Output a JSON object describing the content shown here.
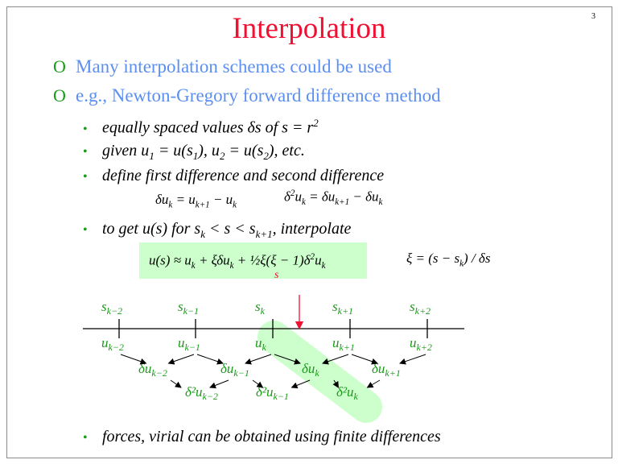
{
  "title": "Interpolation",
  "page_number": "3",
  "bullets": [
    {
      "icon": "hollow-o-bullet",
      "marker": "O",
      "text": "Many interpolation schemes could be used"
    },
    {
      "icon": "hollow-o-bullet",
      "marker": "O",
      "text": "e.g., Newton-Gregory forward difference method"
    }
  ],
  "sub_bullets": {
    "marker": "•",
    "b1": {
      "pre": "equally spaced values δs of s = r",
      "sup": "2"
    },
    "b2": {
      "a": "given u",
      "a_sub": "1",
      "b": " = u(s",
      "b_sub": "1",
      "c": "), u",
      "c_sub": "2",
      "d": " = u(s",
      "d_sub": "2",
      "e": "), etc."
    },
    "b3": "define first difference and second difference",
    "b4": {
      "a": "to get u(s) for s",
      "a_sub": "k",
      "b": " < s < s",
      "b_sub": "k+1",
      "c": ", interpolate"
    },
    "b5": "forces, virial can be obtained using finite differences"
  },
  "equations": {
    "first_diff": {
      "a": "δu",
      "a_sub": "k",
      "b": " = u",
      "b_sub": "k+1",
      "c": " − u",
      "c_sub": "k"
    },
    "second_diff": {
      "a": "δ",
      "a_sup": "2",
      "b": "u",
      "b_sub": "k",
      "c": " = δu",
      "c_sub": "k+1",
      "d": " − δu",
      "d_sub": "k"
    },
    "interp": {
      "a": "u(s) ≈ u",
      "a_sub": "k",
      "b": " + ξδu",
      "b_sub": "k",
      "c": " + ½ξ(ξ − 1)δ",
      "c_sup": "2",
      "d": "u",
      "d_sub": "k"
    },
    "xi": {
      "a": "ξ = (s − s",
      "a_sub": "k",
      "b": ") / δs"
    },
    "red_s": "s"
  },
  "diagram": {
    "colors": {
      "label": "#1a9a1a",
      "highlight": "#ccffcc",
      "pointer": "#ee1133"
    },
    "s_labels": [
      [
        "s",
        "k−2"
      ],
      [
        "s",
        "k−1"
      ],
      [
        "s",
        "k"
      ],
      [
        "s",
        "k+1"
      ],
      [
        "s",
        "k+2"
      ]
    ],
    "u_labels": [
      [
        "u",
        "k−2"
      ],
      [
        "u",
        "k−1"
      ],
      [
        "u",
        "k"
      ],
      [
        "u",
        "k+1"
      ],
      [
        "u",
        "k+2"
      ]
    ],
    "du_labels": [
      [
        "δu",
        "k−2"
      ],
      [
        "δu",
        "k−1"
      ],
      [
        "δu",
        "k"
      ],
      [
        "δu",
        "k+1"
      ]
    ],
    "d2u_labels": [
      [
        "δ²u",
        "k−2"
      ],
      [
        "δ²u",
        "k−1"
      ],
      [
        "δ²u",
        "k"
      ]
    ]
  }
}
